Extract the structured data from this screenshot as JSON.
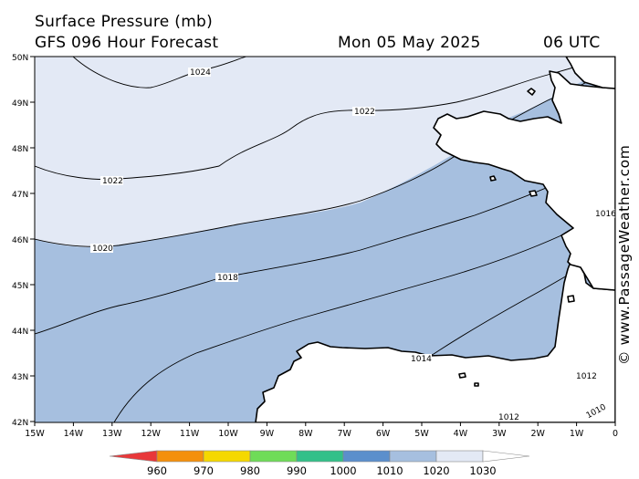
{
  "header": {
    "title": "Surface Pressure (mb)",
    "model": "GFS 096 Hour Forecast",
    "date": "Mon 05 May 2025",
    "time": "06 UTC"
  },
  "credit": "© www.PassageWeather.com",
  "map": {
    "lat_labels": [
      "50N",
      "49N",
      "48N",
      "47N",
      "46N",
      "45N",
      "44N",
      "43N",
      "42N"
    ],
    "lon_labels": [
      "15W",
      "14W",
      "13W",
      "12W",
      "11W",
      "10W",
      "9W",
      "8W",
      "7W",
      "6W",
      "5W",
      "4W",
      "3W",
      "2W",
      "1W",
      "0"
    ],
    "isobars": [
      {
        "label": "1024"
      },
      {
        "label": "1022"
      },
      {
        "label": "1022"
      },
      {
        "label": "1020"
      },
      {
        "label": "1018"
      },
      {
        "label": "1016"
      },
      {
        "label": "1014"
      },
      {
        "label": "1012"
      },
      {
        "label": "1012"
      },
      {
        "label": "1010"
      }
    ],
    "colors": {
      "band_1020_plus": "#e3e9f5",
      "band_1010_1020": "#a6bfdf",
      "land_mask": "#ffffff"
    }
  },
  "legend": {
    "labels": [
      "960",
      "970",
      "980",
      "990",
      "1000",
      "1010",
      "1020",
      "1030"
    ],
    "colors": [
      "#e8383a",
      "#f4900c",
      "#f5d800",
      "#6fdc58",
      "#32c089",
      "#5b8fcc",
      "#a6bfdf",
      "#e3e9f5"
    ]
  }
}
